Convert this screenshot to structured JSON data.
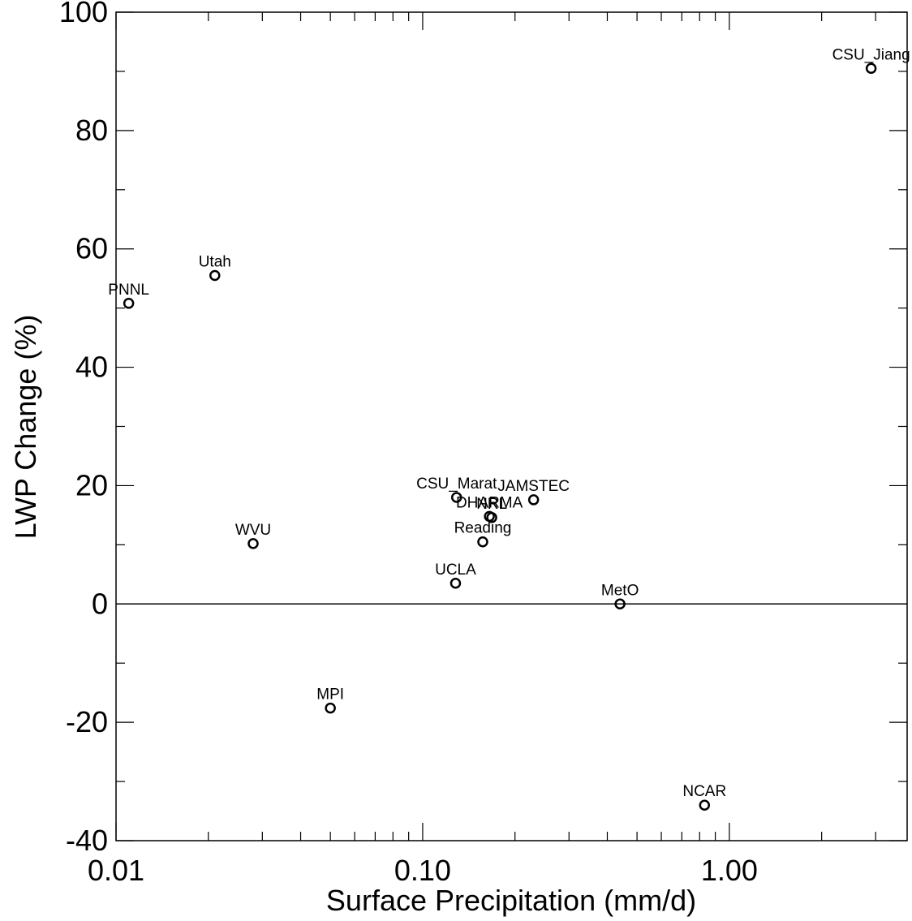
{
  "chart_data": {
    "type": "scatter",
    "xlabel": "Surface Precipitation (mm/d)",
    "ylabel": "LWP Change (%)",
    "x_scale": "log",
    "xlim": [
      0.01,
      3.8
    ],
    "ylim": [
      -40,
      100
    ],
    "x_ticks": [
      0.01,
      0.1,
      1.0
    ],
    "x_tick_labels": [
      "0.01",
      "0.10",
      "1.00"
    ],
    "y_ticks": [
      -40,
      -20,
      0,
      20,
      40,
      60,
      80,
      100
    ],
    "y_tick_labels": [
      "-40",
      "-20",
      "0",
      "20",
      "40",
      "60",
      "80",
      "100"
    ],
    "zero_line": true,
    "grid": false,
    "marker": "open-circle",
    "colors": {
      "ink": "#000000",
      "background": "#ffffff"
    },
    "points": [
      {
        "label": "CSU_Jiang",
        "x": 2.9,
        "y": 90.5
      },
      {
        "label": "Utah",
        "x": 0.021,
        "y": 55.5
      },
      {
        "label": "PNNL",
        "x": 0.011,
        "y": 50.8
      },
      {
        "label": "CSU_Marat",
        "x": 0.129,
        "y": 18.0
      },
      {
        "label": "JAMSTEC",
        "x": 0.23,
        "y": 17.6
      },
      {
        "label": "DHARMA",
        "x": 0.165,
        "y": 14.8
      },
      {
        "label": "NRL",
        "x": 0.168,
        "y": 14.6
      },
      {
        "label": "Reading",
        "x": 0.157,
        "y": 10.5
      },
      {
        "label": "WVU",
        "x": 0.028,
        "y": 10.2
      },
      {
        "label": "UCLA",
        "x": 0.128,
        "y": 3.5
      },
      {
        "label": "MetO",
        "x": 0.44,
        "y": 0.0
      },
      {
        "label": "MPI",
        "x": 0.05,
        "y": -17.6
      },
      {
        "label": "NCAR",
        "x": 0.83,
        "y": -34.0
      }
    ]
  }
}
